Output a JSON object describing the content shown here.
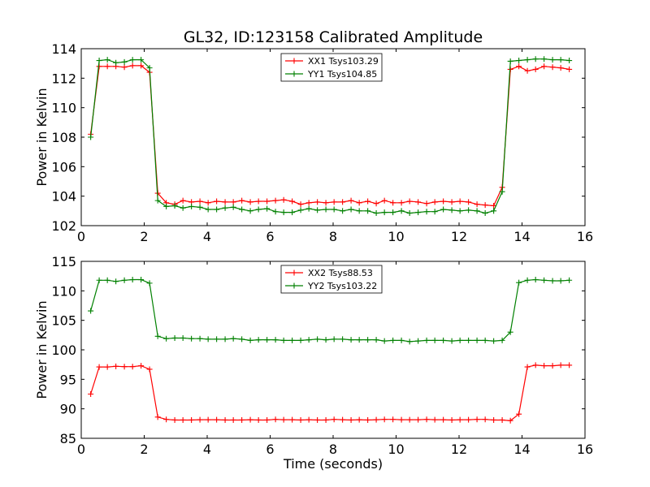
{
  "chart_data": [
    {
      "type": "line",
      "title": "GL32, ID:123158 Calibrated Amplitude",
      "xlabel": "",
      "ylabel": "Power in Kelvin",
      "xlim": [
        0,
        16
      ],
      "ylim": [
        102,
        114
      ],
      "xticks": [
        0,
        2,
        4,
        6,
        8,
        10,
        12,
        14,
        16
      ],
      "yticks": [
        102,
        104,
        106,
        108,
        110,
        112,
        114
      ],
      "grid": false,
      "legend_position": "top-center",
      "x": [
        0.3,
        0.57,
        0.83,
        1.1,
        1.37,
        1.63,
        1.9,
        2.17,
        2.43,
        2.7,
        2.97,
        3.23,
        3.5,
        3.77,
        4.03,
        4.3,
        4.57,
        4.83,
        5.1,
        5.37,
        5.63,
        5.9,
        6.17,
        6.43,
        6.7,
        6.97,
        7.23,
        7.5,
        7.77,
        8.03,
        8.3,
        8.57,
        8.83,
        9.1,
        9.37,
        9.63,
        9.9,
        10.17,
        10.43,
        10.7,
        10.97,
        11.23,
        11.5,
        11.77,
        12.03,
        12.3,
        12.57,
        12.83,
        13.1,
        13.37,
        13.63,
        13.9,
        14.17,
        14.43,
        14.7,
        14.97,
        15.23,
        15.5
      ],
      "series": [
        {
          "name": "XX1 Tsys103.29",
          "color": "#ff0000",
          "values": [
            108.2,
            112.8,
            112.8,
            112.8,
            112.75,
            112.85,
            112.85,
            112.4,
            104.2,
            103.55,
            103.45,
            103.7,
            103.6,
            103.65,
            103.55,
            103.65,
            103.6,
            103.6,
            103.7,
            103.6,
            103.65,
            103.65,
            103.7,
            103.75,
            103.65,
            103.45,
            103.55,
            103.6,
            103.55,
            103.6,
            103.6,
            103.7,
            103.55,
            103.65,
            103.5,
            103.7,
            103.55,
            103.55,
            103.65,
            103.6,
            103.5,
            103.6,
            103.65,
            103.6,
            103.65,
            103.6,
            103.45,
            103.4,
            103.35,
            104.6,
            112.6,
            112.8,
            112.5,
            112.6,
            112.8,
            112.75,
            112.7,
            112.6
          ]
        },
        {
          "name": "YY1 Tsys104.85",
          "color": "#008000",
          "values": [
            108.0,
            113.2,
            113.25,
            113.05,
            113.1,
            113.25,
            113.25,
            112.7,
            103.7,
            103.3,
            103.35,
            103.2,
            103.3,
            103.25,
            103.1,
            103.1,
            103.2,
            103.25,
            103.1,
            103.0,
            103.1,
            103.15,
            102.95,
            102.9,
            102.9,
            103.05,
            103.15,
            103.05,
            103.1,
            103.1,
            103.0,
            103.1,
            103.0,
            103.0,
            102.85,
            102.9,
            102.9,
            103.0,
            102.85,
            102.9,
            102.95,
            102.95,
            103.1,
            103.05,
            103.0,
            103.05,
            103.0,
            102.85,
            103.0,
            104.3,
            113.15,
            113.2,
            113.25,
            113.3,
            113.3,
            113.25,
            113.25,
            113.2
          ]
        }
      ]
    },
    {
      "type": "line",
      "title": "",
      "xlabel": "Time (seconds)",
      "ylabel": "Power in Kelvin",
      "xlim": [
        0,
        16
      ],
      "ylim": [
        85,
        115
      ],
      "xticks": [
        0,
        2,
        4,
        6,
        8,
        10,
        12,
        14,
        16
      ],
      "yticks": [
        85,
        90,
        95,
        100,
        105,
        110,
        115
      ],
      "grid": false,
      "legend_position": "top-center",
      "x": [
        0.3,
        0.57,
        0.83,
        1.1,
        1.37,
        1.63,
        1.9,
        2.17,
        2.43,
        2.7,
        2.97,
        3.23,
        3.5,
        3.77,
        4.03,
        4.3,
        4.57,
        4.83,
        5.1,
        5.37,
        5.63,
        5.9,
        6.17,
        6.43,
        6.7,
        6.97,
        7.23,
        7.5,
        7.77,
        8.03,
        8.3,
        8.57,
        8.83,
        9.1,
        9.37,
        9.63,
        9.9,
        10.17,
        10.43,
        10.7,
        10.97,
        11.23,
        11.5,
        11.77,
        12.03,
        12.3,
        12.57,
        12.83,
        13.1,
        13.37,
        13.63,
        13.9,
        14.17,
        14.43,
        14.7,
        14.97,
        15.23,
        15.5
      ],
      "series": [
        {
          "name": "XX2 Tsys88.53",
          "color": "#ff0000",
          "values": [
            92.5,
            97.1,
            97.1,
            97.2,
            97.15,
            97.15,
            97.3,
            96.7,
            88.6,
            88.2,
            88.1,
            88.1,
            88.1,
            88.15,
            88.15,
            88.15,
            88.1,
            88.1,
            88.1,
            88.15,
            88.1,
            88.1,
            88.2,
            88.15,
            88.15,
            88.1,
            88.15,
            88.1,
            88.1,
            88.2,
            88.15,
            88.1,
            88.15,
            88.1,
            88.15,
            88.2,
            88.2,
            88.15,
            88.15,
            88.15,
            88.2,
            88.15,
            88.15,
            88.1,
            88.15,
            88.15,
            88.2,
            88.2,
            88.1,
            88.1,
            88.0,
            89.1,
            97.1,
            97.4,
            97.3,
            97.3,
            97.4,
            97.4
          ]
        },
        {
          "name": "YY2 Tsys103.22",
          "color": "#008000",
          "values": [
            106.6,
            111.8,
            111.8,
            111.6,
            111.8,
            111.9,
            111.9,
            111.3,
            102.3,
            101.9,
            102.0,
            102.0,
            101.9,
            101.9,
            101.8,
            101.8,
            101.8,
            101.9,
            101.8,
            101.6,
            101.7,
            101.7,
            101.7,
            101.6,
            101.6,
            101.6,
            101.7,
            101.8,
            101.7,
            101.8,
            101.8,
            101.7,
            101.7,
            101.7,
            101.7,
            101.5,
            101.6,
            101.6,
            101.4,
            101.5,
            101.6,
            101.6,
            101.6,
            101.5,
            101.6,
            101.6,
            101.6,
            101.6,
            101.5,
            101.6,
            103.0,
            111.4,
            111.8,
            111.9,
            111.8,
            111.7,
            111.7,
            111.8
          ]
        }
      ]
    }
  ]
}
